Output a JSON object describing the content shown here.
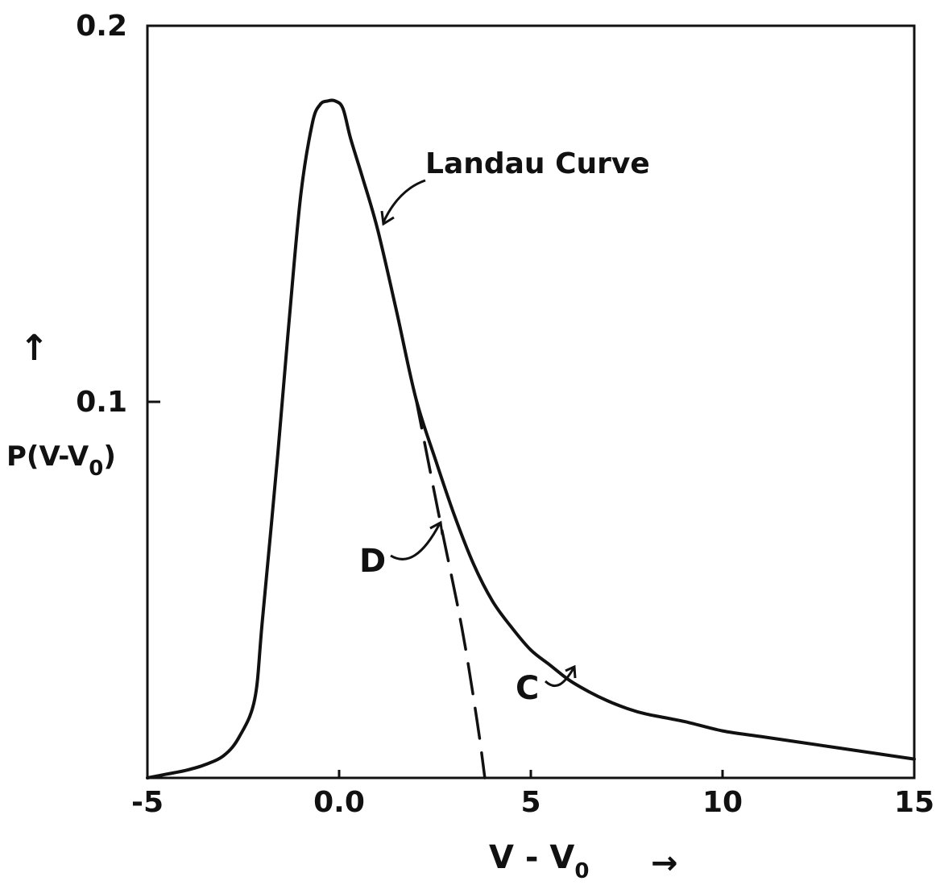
{
  "chart_data": {
    "type": "line",
    "xlabel": "V - V",
    "xlabel_sub": "0",
    "xlabel_arrow": "→",
    "ylabel": "P(V-V",
    "ylabel_sub": "0",
    "ylabel_close": ")",
    "ylabel_arrow": "↑",
    "xlim": [
      -5,
      15
    ],
    "ylim": [
      0,
      0.2
    ],
    "x_ticks": [
      {
        "value": -5,
        "label": "-5"
      },
      {
        "value": 0,
        "label": "0.0"
      },
      {
        "value": 5,
        "label": "5"
      },
      {
        "value": 10,
        "label": "10"
      },
      {
        "value": 15,
        "label": "15"
      }
    ],
    "y_ticks": [
      {
        "value": 0.1,
        "label": "0.1"
      },
      {
        "value": 0.2,
        "label": "0.2"
      }
    ],
    "grid": false,
    "series": [
      {
        "name": "Landau Curve",
        "style": "solid",
        "color": "#111111",
        "x": [
          -5.0,
          -4.5,
          -4.0,
          -3.5,
          -3.0,
          -2.6,
          -2.2,
          -2.0,
          -1.6,
          -1.3,
          -1.0,
          -0.7,
          -0.5,
          -0.3,
          -0.1,
          0.1,
          0.3,
          0.6,
          1.0,
          1.5,
          2.0,
          2.5,
          3.0,
          3.5,
          4.0,
          4.5,
          5.0,
          5.5,
          6.0,
          6.5,
          7.0,
          7.5,
          8.0,
          9.0,
          10.0,
          11.0,
          12.0,
          13.0,
          14.0,
          15.0
        ],
        "y": [
          0.0,
          0.001,
          0.002,
          0.0035,
          0.006,
          0.011,
          0.021,
          0.042,
          0.086,
          0.122,
          0.155,
          0.174,
          0.179,
          0.18,
          0.18,
          0.178,
          0.17,
          0.16,
          0.146,
          0.124,
          0.101,
          0.085,
          0.07,
          0.057,
          0.047,
          0.04,
          0.034,
          0.03,
          0.026,
          0.023,
          0.0205,
          0.0185,
          0.017,
          0.015,
          0.0125,
          0.011,
          0.0095,
          0.008,
          0.0065,
          0.005
        ]
      },
      {
        "name": "D",
        "style": "dashed",
        "color": "#111111",
        "x": [
          2.0,
          2.6,
          3.2,
          3.6,
          3.8
        ],
        "y": [
          0.101,
          0.07,
          0.04,
          0.015,
          0.0
        ]
      }
    ],
    "annotations": [
      {
        "label": "Landau Curve",
        "x": 1.1,
        "y": 0.145,
        "target": "Landau Curve"
      },
      {
        "label": "D",
        "x": 2.6,
        "y": 0.067,
        "target": "D"
      },
      {
        "label": "C",
        "x": 6.0,
        "y": 0.027,
        "target": "Landau Curve"
      }
    ]
  }
}
